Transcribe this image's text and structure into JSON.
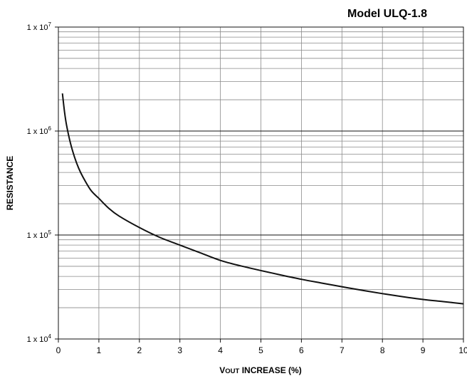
{
  "chart_data": {
    "type": "line",
    "title": "Model ULQ-1.8",
    "xlabel": "VOUT INCREASE (%)",
    "xlabel_parts": {
      "prefix": "V",
      "subscript": "OUT",
      "rest": " INCREASE (%)"
    },
    "ylabel": "RESISTANCE",
    "xlim": [
      0,
      10
    ],
    "ylim": [
      10000,
      10000000
    ],
    "y_scale": "log",
    "grid": true,
    "x_ticks": [
      0,
      1,
      2,
      3,
      4,
      5,
      6,
      7,
      8,
      9,
      10
    ],
    "x_tick_labels": [
      "0",
      "1",
      "2",
      "3",
      "4",
      "5",
      "6",
      "7",
      "8",
      "9",
      "10"
    ],
    "y_ticks": [
      10000,
      100000,
      1000000,
      10000000
    ],
    "y_tick_labels": [
      {
        "base": "1 x 10",
        "exp": "4"
      },
      {
        "base": "1 x 10",
        "exp": "5"
      },
      {
        "base": "1 x 10",
        "exp": "6"
      },
      {
        "base": "1 x 10",
        "exp": "7"
      }
    ],
    "series": [
      {
        "color": "#111111",
        "points": [
          [
            0.1,
            2300000
          ],
          [
            0.15,
            1550000
          ],
          [
            0.2,
            1150000
          ],
          [
            0.3,
            760000
          ],
          [
            0.4,
            560000
          ],
          [
            0.5,
            440000
          ],
          [
            0.6,
            365000
          ],
          [
            0.8,
            270000
          ],
          [
            1.0,
            225000
          ],
          [
            1.25,
            180000
          ],
          [
            1.5,
            152000
          ],
          [
            2.0,
            118000
          ],
          [
            2.5,
            95000
          ],
          [
            3.0,
            80000
          ],
          [
            3.5,
            67500
          ],
          [
            4.0,
            57000
          ],
          [
            4.5,
            50500
          ],
          [
            5.0,
            45500
          ],
          [
            5.5,
            41200
          ],
          [
            6.0,
            37500
          ],
          [
            6.5,
            34500
          ],
          [
            7.0,
            31800
          ],
          [
            7.5,
            29400
          ],
          [
            8.0,
            27300
          ],
          [
            8.5,
            25500
          ],
          [
            9.0,
            24000
          ],
          [
            9.5,
            22900
          ],
          [
            10.0,
            21800
          ]
        ]
      }
    ]
  }
}
